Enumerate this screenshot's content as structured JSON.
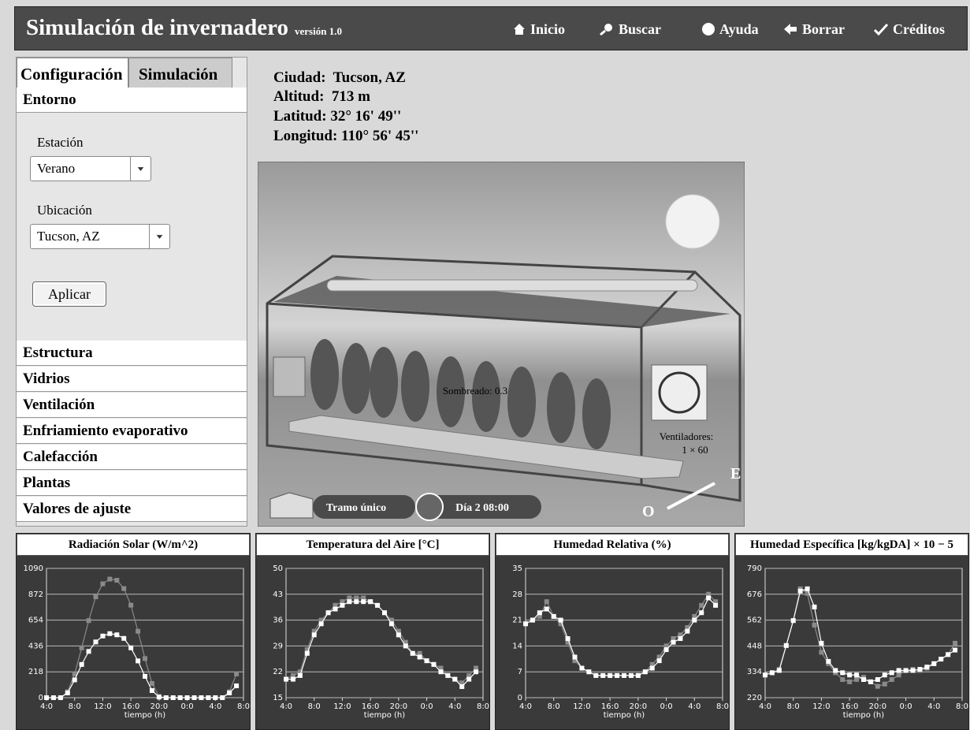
{
  "header": {
    "title": "Simulación de invernadero",
    "version": "versión 1.0",
    "nav": [
      "Inicio",
      "Buscar",
      "Ayuda",
      "Borrar",
      "Créditos"
    ]
  },
  "tabs": [
    "Configuración",
    "Simulación"
  ],
  "sections": [
    "Entorno",
    "Estructura",
    "Vidrios",
    "Ventilación",
    "Enfriamiento evaporativo",
    "Calefacción",
    "Plantas",
    "Valores de ajuste"
  ],
  "form": {
    "station_label": "Estación",
    "station_value": "Verano",
    "location_label": "Ubicación",
    "location_value": "Tucson, AZ",
    "button": "Aplicar"
  },
  "info": [
    "Ciudad:  Tucson, AZ",
    "Altitud:  713 m",
    "Latitud: 32° 16' 49''",
    "Longitud: 110° 56' 45''"
  ],
  "scene": {
    "shading": "Sombreado: 0.3",
    "fans_label": "Ventiladores:",
    "fans_value": "1 × 60",
    "span": "Tramo único",
    "day": "Día 2 08:00",
    "east": "E",
    "west": "O"
  },
  "chart_data": [
    {
      "type": "line",
      "title": "Radiación Solar (W/m^2)",
      "x_label": "tiempo (h)",
      "x": [
        4,
        5,
        6,
        7,
        8,
        9,
        10,
        11,
        12,
        13,
        14,
        15,
        16,
        17,
        18,
        19,
        20,
        21,
        22,
        23,
        24,
        25,
        26,
        27,
        28,
        29,
        30,
        31
      ],
      "xlim": [
        4,
        32
      ],
      "xticks": [
        {
          "value": 4,
          "label": "4:0"
        },
        {
          "value": 8,
          "label": "8:0"
        },
        {
          "value": 12,
          "label": "12:0"
        },
        {
          "value": 16,
          "label": "16:0"
        },
        {
          "value": 20,
          "label": "20:0"
        },
        {
          "value": 24,
          "label": "0:0"
        },
        {
          "value": 28,
          "label": "4:0"
        },
        {
          "value": 32,
          "label": "8:0"
        }
      ],
      "ylim": [
        0,
        1090
      ],
      "yticks": [
        0,
        218,
        436,
        654,
        872,
        1090
      ],
      "series": [
        {
          "color": "#8a8a8a",
          "values": [
            0,
            0,
            0,
            50,
            200,
            420,
            650,
            850,
            960,
            1000,
            990,
            920,
            780,
            560,
            330,
            120,
            10,
            0,
            0,
            0,
            0,
            0,
            0,
            0,
            0,
            0,
            50,
            200
          ]
        },
        {
          "color": "#ffffff",
          "values": [
            0,
            0,
            0,
            40,
            150,
            280,
            390,
            470,
            520,
            540,
            530,
            500,
            420,
            310,
            180,
            60,
            5,
            0,
            0,
            0,
            0,
            0,
            0,
            0,
            0,
            0,
            40,
            100
          ]
        }
      ]
    },
    {
      "type": "line",
      "title": "Temperatura del Aire [°C]",
      "x_label": "tiempo (h)",
      "x": [
        4,
        5,
        6,
        7,
        8,
        9,
        10,
        11,
        12,
        13,
        14,
        15,
        16,
        17,
        18,
        19,
        20,
        21,
        22,
        23,
        24,
        25,
        26,
        27,
        28,
        29,
        30,
        31
      ],
      "xlim": [
        4,
        32
      ],
      "xticks": [
        {
          "value": 4,
          "label": "4:0"
        },
        {
          "value": 8,
          "label": "8:0"
        },
        {
          "value": 12,
          "label": "12:0"
        },
        {
          "value": 16,
          "label": "16:0"
        },
        {
          "value": 20,
          "label": "20:0"
        },
        {
          "value": 24,
          "label": "0:0"
        },
        {
          "value": 28,
          "label": "4:0"
        },
        {
          "value": 32,
          "label": "8:0"
        }
      ],
      "ylim": [
        15,
        50
      ],
      "yticks": [
        15,
        22,
        29,
        36,
        43,
        50
      ],
      "series": [
        {
          "color": "#8a8a8a",
          "values": [
            20,
            21,
            22,
            28,
            33,
            36,
            38,
            40,
            41,
            42,
            42,
            42,
            41,
            40,
            38,
            36,
            33,
            30,
            27,
            27,
            25,
            24,
            23,
            21,
            20,
            19,
            21,
            23
          ]
        },
        {
          "color": "#ffffff",
          "values": [
            20,
            20,
            21,
            27,
            32,
            35,
            38,
            39,
            40,
            41,
            41,
            41,
            41,
            40,
            38,
            35,
            32,
            29,
            27,
            26,
            25,
            24,
            22,
            21,
            20,
            18,
            20,
            22
          ]
        }
      ]
    },
    {
      "type": "line",
      "title": "Humedad Relativa (%)",
      "x_label": "tiempo (h)",
      "x": [
        4,
        5,
        6,
        7,
        8,
        9,
        10,
        11,
        12,
        13,
        14,
        15,
        16,
        17,
        18,
        19,
        20,
        21,
        22,
        23,
        24,
        25,
        26,
        27,
        28,
        29,
        30,
        31
      ],
      "xlim": [
        4,
        32
      ],
      "xticks": [
        {
          "value": 4,
          "label": "4:0"
        },
        {
          "value": 8,
          "label": "8:0"
        },
        {
          "value": 12,
          "label": "12:0"
        },
        {
          "value": 16,
          "label": "16:0"
        },
        {
          "value": 20,
          "label": "20:0"
        },
        {
          "value": 24,
          "label": "0:0"
        },
        {
          "value": 28,
          "label": "4:0"
        },
        {
          "value": 32,
          "label": "8:0"
        }
      ],
      "ylim": [
        0,
        35
      ],
      "yticks": [
        0,
        7,
        14,
        21,
        28,
        35
      ],
      "series": [
        {
          "color": "#8a8a8a",
          "values": [
            20,
            21,
            22,
            26,
            22,
            20,
            15,
            10,
            8,
            7,
            6,
            6,
            6,
            6,
            6,
            6,
            6,
            7,
            9,
            11,
            14,
            16,
            17,
            19,
            22,
            25,
            28,
            26
          ]
        },
        {
          "color": "#ffffff",
          "values": [
            20,
            21,
            23,
            24,
            22,
            21,
            16,
            11,
            8,
            7,
            6,
            6,
            6,
            6,
            6,
            6,
            6,
            7,
            8,
            10,
            13,
            15,
            16,
            18,
            21,
            23,
            27,
            25
          ]
        }
      ]
    },
    {
      "type": "line",
      "title": "Humedad Específica [kg/kgDA] × 10 − 5",
      "x_label": "tiempo (h)",
      "x": [
        4,
        5,
        6,
        7,
        8,
        9,
        10,
        11,
        12,
        13,
        14,
        15,
        16,
        17,
        18,
        19,
        20,
        21,
        22,
        23,
        24,
        25,
        26,
        27,
        28,
        29,
        30,
        31
      ],
      "xlim": [
        4,
        32
      ],
      "xticks": [
        {
          "value": 4,
          "label": "4:0"
        },
        {
          "value": 8,
          "label": "8:0"
        },
        {
          "value": 12,
          "label": "12:0"
        },
        {
          "value": 16,
          "label": "16:0"
        },
        {
          "value": 20,
          "label": "20:0"
        },
        {
          "value": 24,
          "label": "0:0"
        },
        {
          "value": 28,
          "label": "4:0"
        },
        {
          "value": 32,
          "label": "8:0"
        }
      ],
      "ylim": [
        220,
        790
      ],
      "yticks": [
        220,
        334,
        448,
        562,
        676,
        790
      ],
      "series": [
        {
          "color": "#8a8a8a",
          "values": [
            320,
            330,
            345,
            450,
            560,
            700,
            680,
            540,
            420,
            370,
            330,
            300,
            290,
            300,
            310,
            290,
            270,
            280,
            300,
            320,
            340,
            345,
            340,
            350,
            370,
            390,
            410,
            460
          ]
        },
        {
          "color": "#ffffff",
          "values": [
            320,
            330,
            340,
            450,
            560,
            690,
            700,
            620,
            460,
            380,
            340,
            330,
            320,
            320,
            300,
            290,
            300,
            320,
            330,
            340,
            340,
            340,
            345,
            355,
            370,
            390,
            410,
            430
          ]
        }
      ]
    }
  ]
}
